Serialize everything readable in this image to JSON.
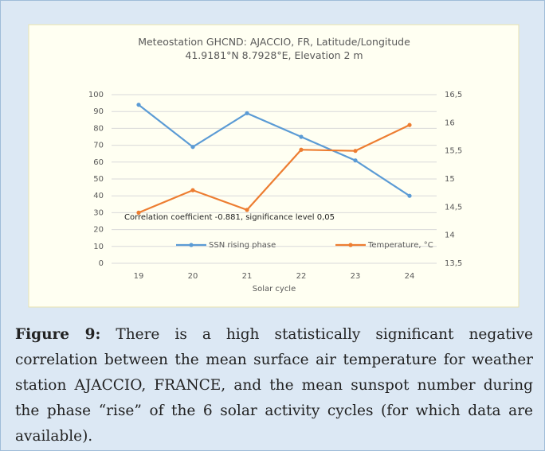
{
  "chart_data": {
    "type": "line",
    "title": "Meteostation GHCND:  AJACCIO, FR, Latitude/Longitude 41.9181°N 8.7928°E, Elevation 2 m",
    "annotation": "Correlation coefficient -0.881, significance level 0,05",
    "x_label": "Solar cycle",
    "categories": [
      "19",
      "20",
      "21",
      "22",
      "23",
      "24"
    ],
    "series": [
      {
        "name": "SSN rising phase",
        "color": "#5b9bd5",
        "values": [
          94,
          69,
          89,
          75,
          61,
          40
        ]
      },
      {
        "name": "Temperature, °C",
        "color": "#ed7d31",
        "axis": "y2",
        "values": [
          14.4,
          14.8,
          14.45,
          15.52,
          15.5,
          15.96
        ]
      }
    ],
    "ylim": [
      0,
      100
    ],
    "yticks": [
      0,
      10,
      20,
      30,
      40,
      50,
      60,
      70,
      80,
      90,
      100
    ],
    "y2lim": [
      13.5,
      16.5
    ],
    "y2ticks": [
      {
        "value": 13.5,
        "label": "13,5"
      },
      14,
      {
        "value": 14.5,
        "label": "14,5"
      },
      15,
      {
        "value": 15.5,
        "label": "15,5"
      },
      16,
      {
        "value": 16.5,
        "label": "16,5"
      }
    ],
    "grid": true,
    "legend": "bottom"
  },
  "caption": {
    "label": "Figure 9:",
    "text": "There is a high statistically significant negative correlation between the mean surface air temperature for weather station AJACCIO, FRANCE, and the mean sunspot number during the phase “rise” of the 6 solar activity cycles (for which data are available)."
  }
}
